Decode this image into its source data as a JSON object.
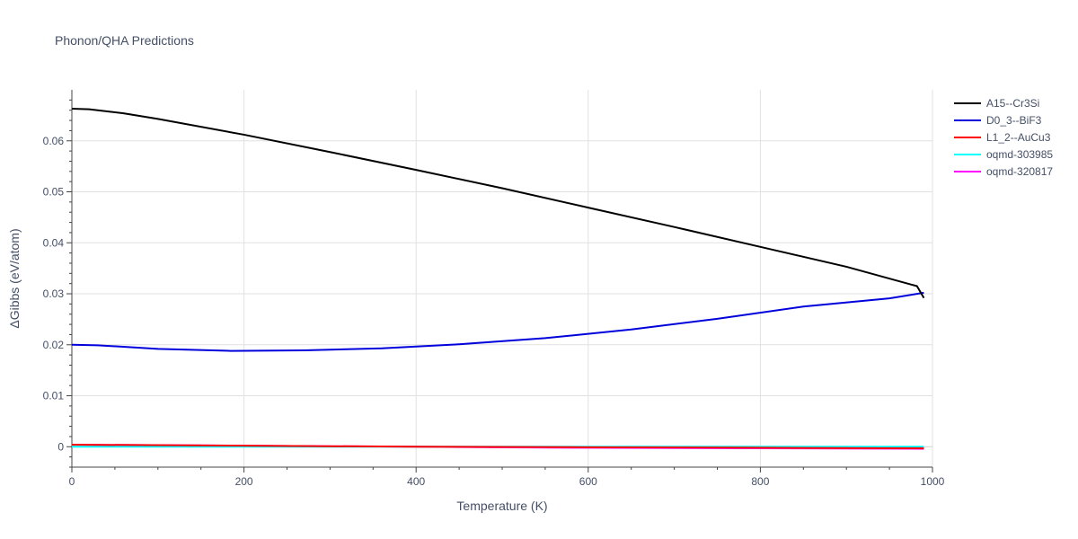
{
  "chart_data": {
    "type": "line",
    "title": "Phonon/QHA Predictions",
    "xlabel": "Temperature (K)",
    "ylabel": "ΔGibbs (eV/atom)",
    "xlim": [
      0,
      1000
    ],
    "ylim": [
      -0.004,
      0.07
    ],
    "x_ticks": [
      0,
      200,
      400,
      600,
      800,
      1000
    ],
    "x_tick_labels": [
      "0",
      "200",
      "400",
      "600",
      "800",
      "1000"
    ],
    "y_ticks": [
      0,
      0.01,
      0.02,
      0.03,
      0.04,
      0.05,
      0.06
    ],
    "y_tick_labels": [
      "0",
      "0.01",
      "0.02",
      "0.03",
      "0.04",
      "0.05",
      "0.06"
    ],
    "grid": true,
    "legend_position": "top-right",
    "series": [
      {
        "name": "A15--Cr3Si",
        "color": "#000000",
        "x": [
          0,
          20,
          60,
          100,
          200,
          300,
          400,
          500,
          600,
          700,
          800,
          900,
          982,
          990
        ],
        "y": [
          0.0663,
          0.0662,
          0.0654,
          0.0643,
          0.0612,
          0.0578,
          0.0543,
          0.0507,
          0.0469,
          0.0431,
          0.0392,
          0.0353,
          0.0315,
          0.0292
        ]
      },
      {
        "name": "D0_3--BiF3",
        "color": "#0000dd",
        "x": [
          0,
          30,
          100,
          185,
          270,
          360,
          450,
          550,
          650,
          750,
          850,
          950,
          990
        ],
        "y": [
          0.02,
          0.0199,
          0.0192,
          0.0188,
          0.0189,
          0.0193,
          0.0201,
          0.0213,
          0.023,
          0.0251,
          0.0275,
          0.0291,
          0.0302
        ]
      },
      {
        "name": "L1_2--AuCu3",
        "color": "#ff0000",
        "x": [
          0,
          200,
          400,
          600,
          800,
          990
        ],
        "y": [
          0.0004,
          0.0002,
          0.0,
          -0.0001,
          -0.0002,
          -0.0003
        ]
      },
      {
        "name": "oqmd-303985",
        "color": "#00ffff",
        "x": [
          0,
          200,
          400,
          600,
          800,
          990
        ],
        "y": [
          0.0,
          0.0,
          0.0,
          0.0,
          0.0,
          0.0
        ]
      },
      {
        "name": "oqmd-320817",
        "color": "#ff00ff",
        "x": [
          0,
          200,
          400,
          600,
          800,
          990
        ],
        "y": [
          0.0004,
          0.0002,
          0.0,
          -0.0002,
          -0.0003,
          -0.0004
        ]
      }
    ]
  }
}
